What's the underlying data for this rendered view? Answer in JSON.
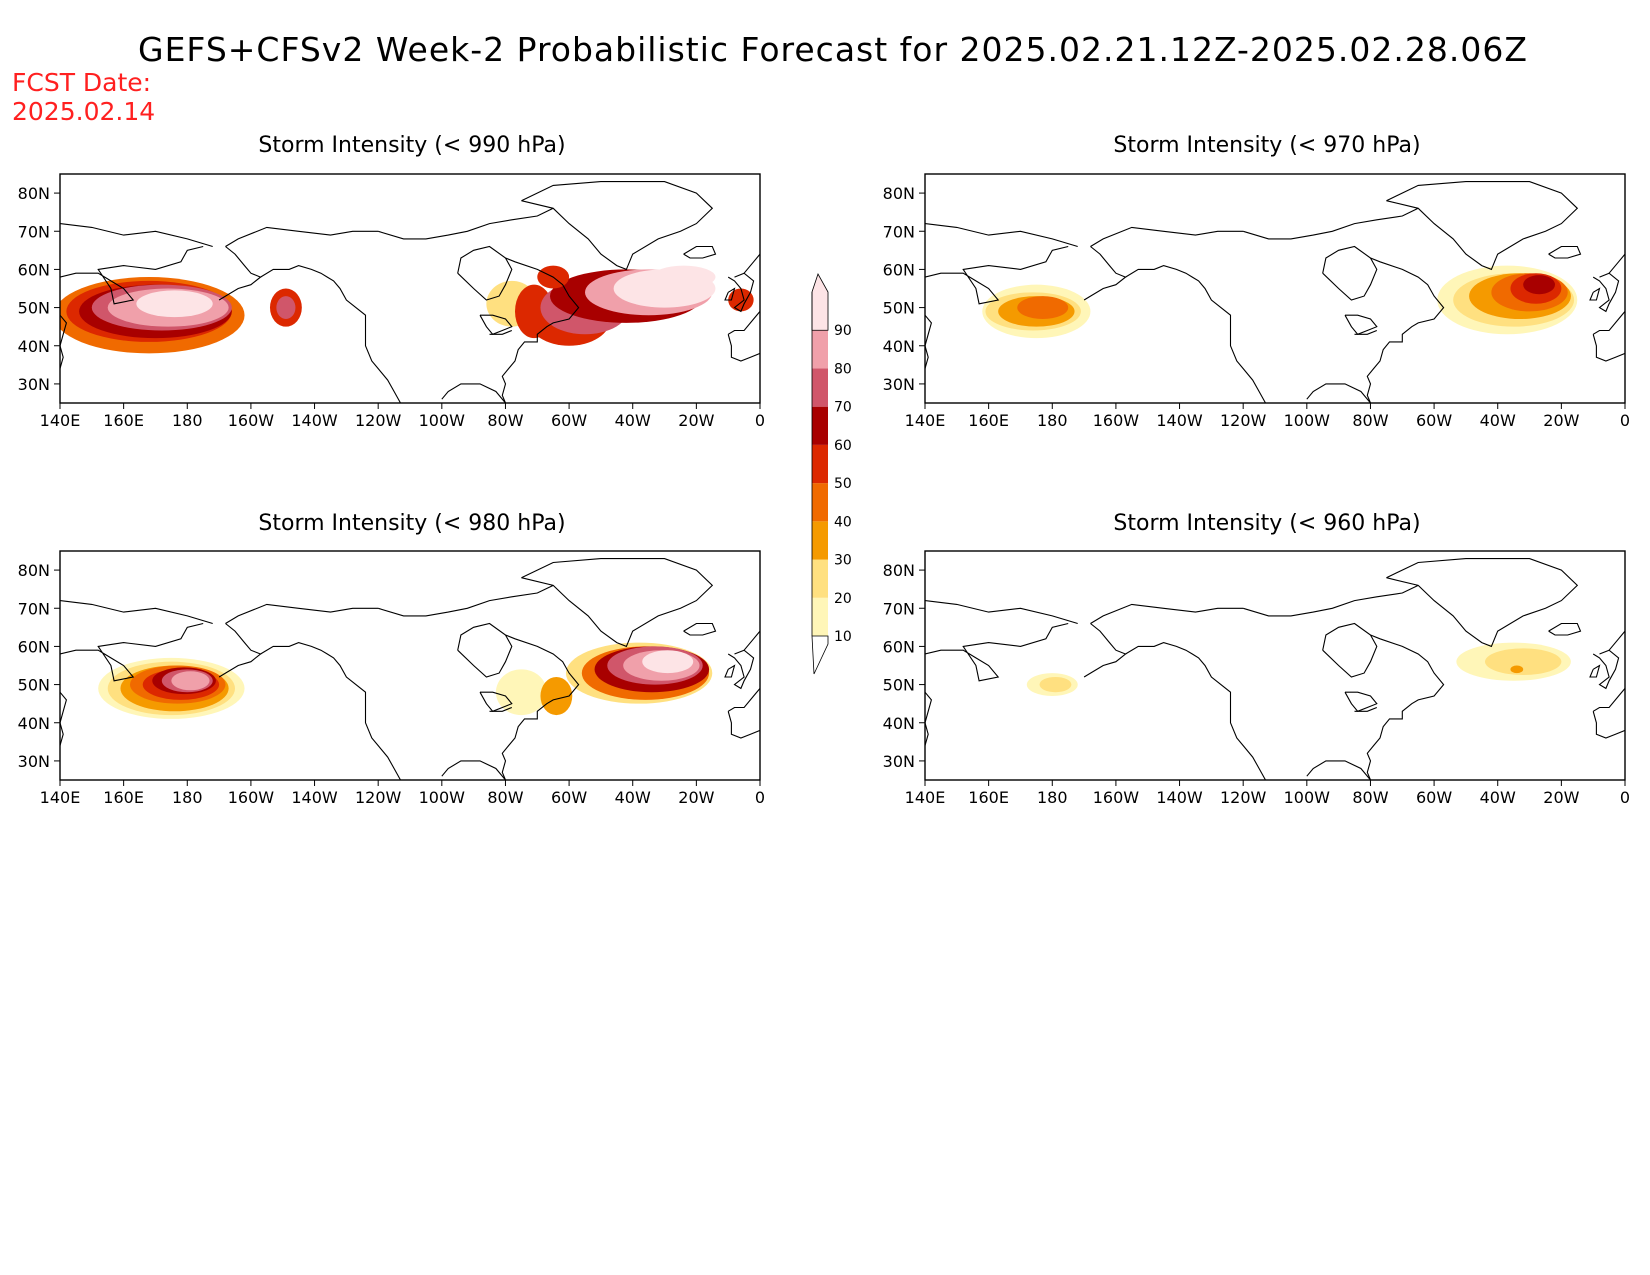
{
  "title": "GEFS+CFSv2 Week-2 Probabilistic Forecast for 2025.02.21.12Z-2025.02.28.06Z",
  "fcst_label": "FCST Date:",
  "fcst_date": "2025.02.14",
  "panels": [
    {
      "title": "Storm Intensity (< 990 hPa)"
    },
    {
      "title": "Storm Intensity (< 970 hPa)"
    },
    {
      "title": "Storm Intensity (< 980 hPa)"
    },
    {
      "title": "Storm Intensity (< 960 hPa)"
    }
  ],
  "lon_labels": [
    "140E",
    "160E",
    "180",
    "160W",
    "140W",
    "120W",
    "100W",
    "80W",
    "60W",
    "40W",
    "20W",
    "0"
  ],
  "lat_labels": [
    "80N",
    "70N",
    "60N",
    "50N",
    "40N",
    "30N"
  ],
  "colorbar": {
    "levels": [
      "10",
      "20",
      "30",
      "40",
      "50",
      "60",
      "70",
      "80",
      "90"
    ],
    "colors": [
      "#fff6b8",
      "#ffe080",
      "#f59a00",
      "#f06a00",
      "#dc2800",
      "#a80000",
      "#d0566a",
      "#f0a0aa",
      "#fde4e6"
    ]
  },
  "colors": {
    "fcst_text": "#ff2020",
    "coast": "#000000"
  }
}
